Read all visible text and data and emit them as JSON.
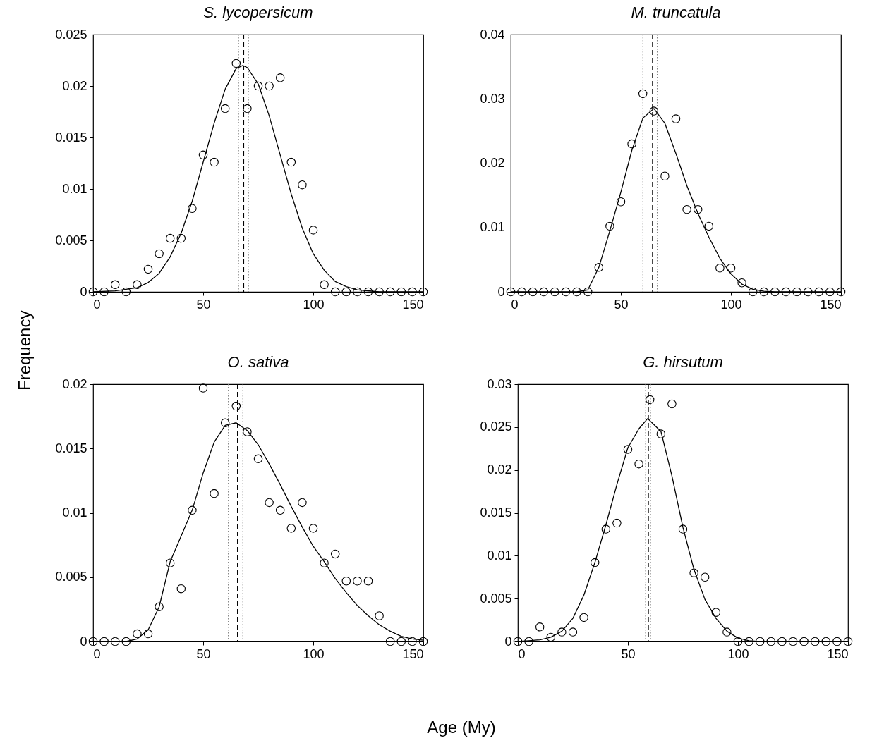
{
  "chart_data": [
    {
      "type": "scatter",
      "title": "S. lycopersicum",
      "ylabel": "Frequency",
      "xlabel": "Age (My)",
      "xlim": [
        0,
        150
      ],
      "xticks": [
        0,
        50,
        100,
        150
      ],
      "ylim": [
        0,
        0.025
      ],
      "yticks": [
        0,
        0.005,
        0.01,
        0.015,
        0.02,
        0.025
      ],
      "x": [
        0,
        5,
        10,
        15,
        20,
        25,
        30,
        35,
        40,
        45,
        50,
        55,
        60,
        65,
        70,
        75,
        80,
        85,
        90,
        95,
        100,
        105,
        110,
        115,
        120,
        125,
        130,
        135,
        140,
        145,
        150
      ],
      "series": [
        {
          "color": "#000000",
          "marker": "circle",
          "values": [
            0,
            0,
            0.0007,
            0,
            0.0007,
            0.0022,
            0.0037,
            0.0052,
            0.0052,
            0.0081,
            0.0133,
            0.0126,
            0.0178,
            0.0222,
            0.0178,
            0.02,
            0.02,
            0.0208,
            0.0126,
            0.0104,
            0.006,
            0.0007,
            0,
            0,
            0,
            0,
            0,
            0,
            0,
            0,
            0
          ]
        },
        {
          "type": "line",
          "color": "#000000",
          "marker": "none",
          "x": [
            0,
            10,
            20,
            25,
            30,
            35,
            40,
            45,
            50,
            55,
            60,
            65,
            68,
            70,
            75,
            80,
            85,
            90,
            95,
            100,
            105,
            110,
            115,
            120,
            130,
            150
          ],
          "values": [
            0,
            0.0001,
            0.0004,
            0.0009,
            0.0018,
            0.0034,
            0.0057,
            0.0088,
            0.0126,
            0.0164,
            0.0197,
            0.0217,
            0.022,
            0.0218,
            0.0202,
            0.0171,
            0.0133,
            0.0095,
            0.0062,
            0.0037,
            0.0021,
            0.001,
            0.0005,
            0.0002,
            0,
            0
          ]
        }
      ],
      "ref_lines": [
        {
          "axis": "x",
          "value": 66.1,
          "color": "#808080",
          "line_style": "dotted"
        },
        {
          "axis": "x",
          "value": 68.4,
          "color": "#000000",
          "line_style": "dashed"
        },
        {
          "axis": "x",
          "value": 70.6,
          "color": "#808080",
          "line_style": "dotted"
        }
      ]
    },
    {
      "type": "scatter",
      "title": "M. truncatula",
      "xlim": [
        0,
        150
      ],
      "xticks": [
        0,
        50,
        100,
        150
      ],
      "ylim": [
        0,
        0.04
      ],
      "yticks": [
        0,
        0.01,
        0.02,
        0.03,
        0.04
      ],
      "x": [
        0,
        5,
        10,
        15,
        20,
        25,
        30,
        35,
        40,
        45,
        50,
        55,
        60,
        65,
        70,
        75,
        80,
        85,
        90,
        95,
        100,
        105,
        110,
        115,
        120,
        125,
        130,
        135,
        140,
        145,
        150
      ],
      "series": [
        {
          "color": "#000000",
          "marker": "circle",
          "values": [
            0,
            0,
            0,
            0,
            0,
            0,
            0,
            0,
            0.0038,
            0.0102,
            0.014,
            0.023,
            0.0308,
            0.0281,
            0.018,
            0.0269,
            0.0128,
            0.0128,
            0.0102,
            0.0037,
            0.0037,
            0.0014,
            0,
            0,
            0,
            0,
            0,
            0,
            0,
            0,
            0
          ]
        },
        {
          "type": "line",
          "color": "#000000",
          "marker": "none",
          "x": [
            0,
            30,
            35,
            40,
            45,
            50,
            55,
            60,
            65,
            70,
            75,
            80,
            85,
            90,
            95,
            100,
            105,
            110,
            115,
            120,
            150
          ],
          "values": [
            0,
            0,
            0.0003,
            0.0038,
            0.0095,
            0.0155,
            0.022,
            0.027,
            0.0285,
            0.0262,
            0.0215,
            0.0165,
            0.0122,
            0.0085,
            0.0052,
            0.0028,
            0.0012,
            0.0004,
            0.0001,
            0,
            0
          ]
        }
      ],
      "ref_lines": [
        {
          "axis": "x",
          "value": 60,
          "color": "#808080",
          "line_style": "dotted"
        },
        {
          "axis": "x",
          "value": 64.4,
          "color": "#000000",
          "line_style": "dashed"
        },
        {
          "axis": "x",
          "value": 66.5,
          "color": "#808080",
          "line_style": "dotted"
        }
      ]
    },
    {
      "type": "scatter",
      "title": "O. sativa",
      "xlim": [
        0,
        150
      ],
      "xticks": [
        0,
        50,
        100,
        150
      ],
      "ylim": [
        0,
        0.02
      ],
      "yticks": [
        0,
        0.005,
        0.01,
        0.015,
        0.02
      ],
      "x": [
        0,
        5,
        10,
        15,
        20,
        25,
        30,
        35,
        40,
        45,
        50,
        55,
        60,
        65,
        70,
        75,
        80,
        85,
        90,
        95,
        100,
        105,
        110,
        115,
        120,
        125,
        130,
        135,
        140,
        145,
        150
      ],
      "series": [
        {
          "color": "#000000",
          "marker": "circle",
          "values": [
            0,
            0,
            0,
            0,
            0.0006,
            0.0006,
            0.0027,
            0.0061,
            0.0041,
            0.0102,
            0.0197,
            0.0115,
            0.017,
            0.0183,
            0.0163,
            0.0142,
            0.0108,
            0.0102,
            0.0088,
            0.0108,
            0.0088,
            0.0061,
            0.0068,
            0.0047,
            0.0047,
            0.0047,
            0.002,
            0,
            0,
            0,
            0
          ]
        },
        {
          "type": "line",
          "color": "#000000",
          "marker": "none",
          "x": [
            0,
            15,
            20,
            25,
            30,
            35,
            40,
            45,
            50,
            55,
            60,
            65,
            70,
            75,
            80,
            85,
            90,
            95,
            100,
            105,
            110,
            115,
            120,
            125,
            130,
            135,
            140,
            145,
            150
          ],
          "values": [
            0,
            0,
            0.0002,
            0.0009,
            0.0027,
            0.0062,
            0.0082,
            0.0102,
            0.0131,
            0.0155,
            0.0168,
            0.017,
            0.0164,
            0.0153,
            0.0138,
            0.0122,
            0.0105,
            0.0089,
            0.0074,
            0.0062,
            0.0049,
            0.0038,
            0.0028,
            0.002,
            0.0013,
            0.0008,
            0.0004,
            0.0002,
            0.0001
          ]
        }
      ],
      "ref_lines": [
        {
          "axis": "x",
          "value": 61.4,
          "color": "#808080",
          "line_style": "dotted"
        },
        {
          "axis": "x",
          "value": 65.6,
          "color": "#000000",
          "line_style": "dashed"
        },
        {
          "axis": "x",
          "value": 68,
          "color": "#808080",
          "line_style": "dotted"
        }
      ]
    },
    {
      "type": "scatter",
      "title": "G. hirsutum",
      "xlim": [
        0,
        150
      ],
      "xticks": [
        0,
        50,
        100,
        150
      ],
      "ylim": [
        0,
        0.03
      ],
      "yticks": [
        0,
        0.005,
        0.01,
        0.015,
        0.02,
        0.025,
        0.03
      ],
      "x": [
        0,
        5,
        10,
        15,
        20,
        25,
        30,
        35,
        40,
        45,
        50,
        55,
        60,
        65,
        70,
        75,
        80,
        85,
        90,
        95,
        100,
        105,
        110,
        115,
        120,
        125,
        130,
        135,
        140,
        145,
        150
      ],
      "series": [
        {
          "color": "#000000",
          "marker": "circle",
          "values": [
            0,
            0,
            0.0017,
            0.0005,
            0.0011,
            0.0011,
            0.0028,
            0.0092,
            0.0131,
            0.0138,
            0.0224,
            0.0207,
            0.0282,
            0.0242,
            0.0277,
            0.0131,
            0.008,
            0.0075,
            0.0034,
            0.0011,
            0,
            0,
            0,
            0,
            0,
            0,
            0,
            0,
            0,
            0,
            0
          ]
        },
        {
          "type": "line",
          "color": "#000000",
          "marker": "none",
          "x": [
            0,
            5,
            10,
            15,
            20,
            25,
            30,
            35,
            40,
            45,
            50,
            55,
            59,
            65,
            70,
            75,
            80,
            85,
            90,
            95,
            100,
            105,
            110,
            150
          ],
          "values": [
            0,
            0.0001,
            0.0002,
            0.0005,
            0.0012,
            0.0027,
            0.0054,
            0.0092,
            0.0136,
            0.0183,
            0.0226,
            0.0248,
            0.026,
            0.0245,
            0.0193,
            0.0133,
            0.0084,
            0.0049,
            0.0027,
            0.0012,
            0.0004,
            0.0001,
            0,
            0
          ]
        }
      ],
      "ref_lines": [
        {
          "axis": "x",
          "value": 58,
          "color": "#808080",
          "line_style": "dotted"
        },
        {
          "axis": "x",
          "value": 59.3,
          "color": "#000000",
          "line_style": "dashed"
        },
        {
          "axis": "x",
          "value": 60.3,
          "color": "#808080",
          "line_style": "dotted"
        }
      ]
    }
  ]
}
